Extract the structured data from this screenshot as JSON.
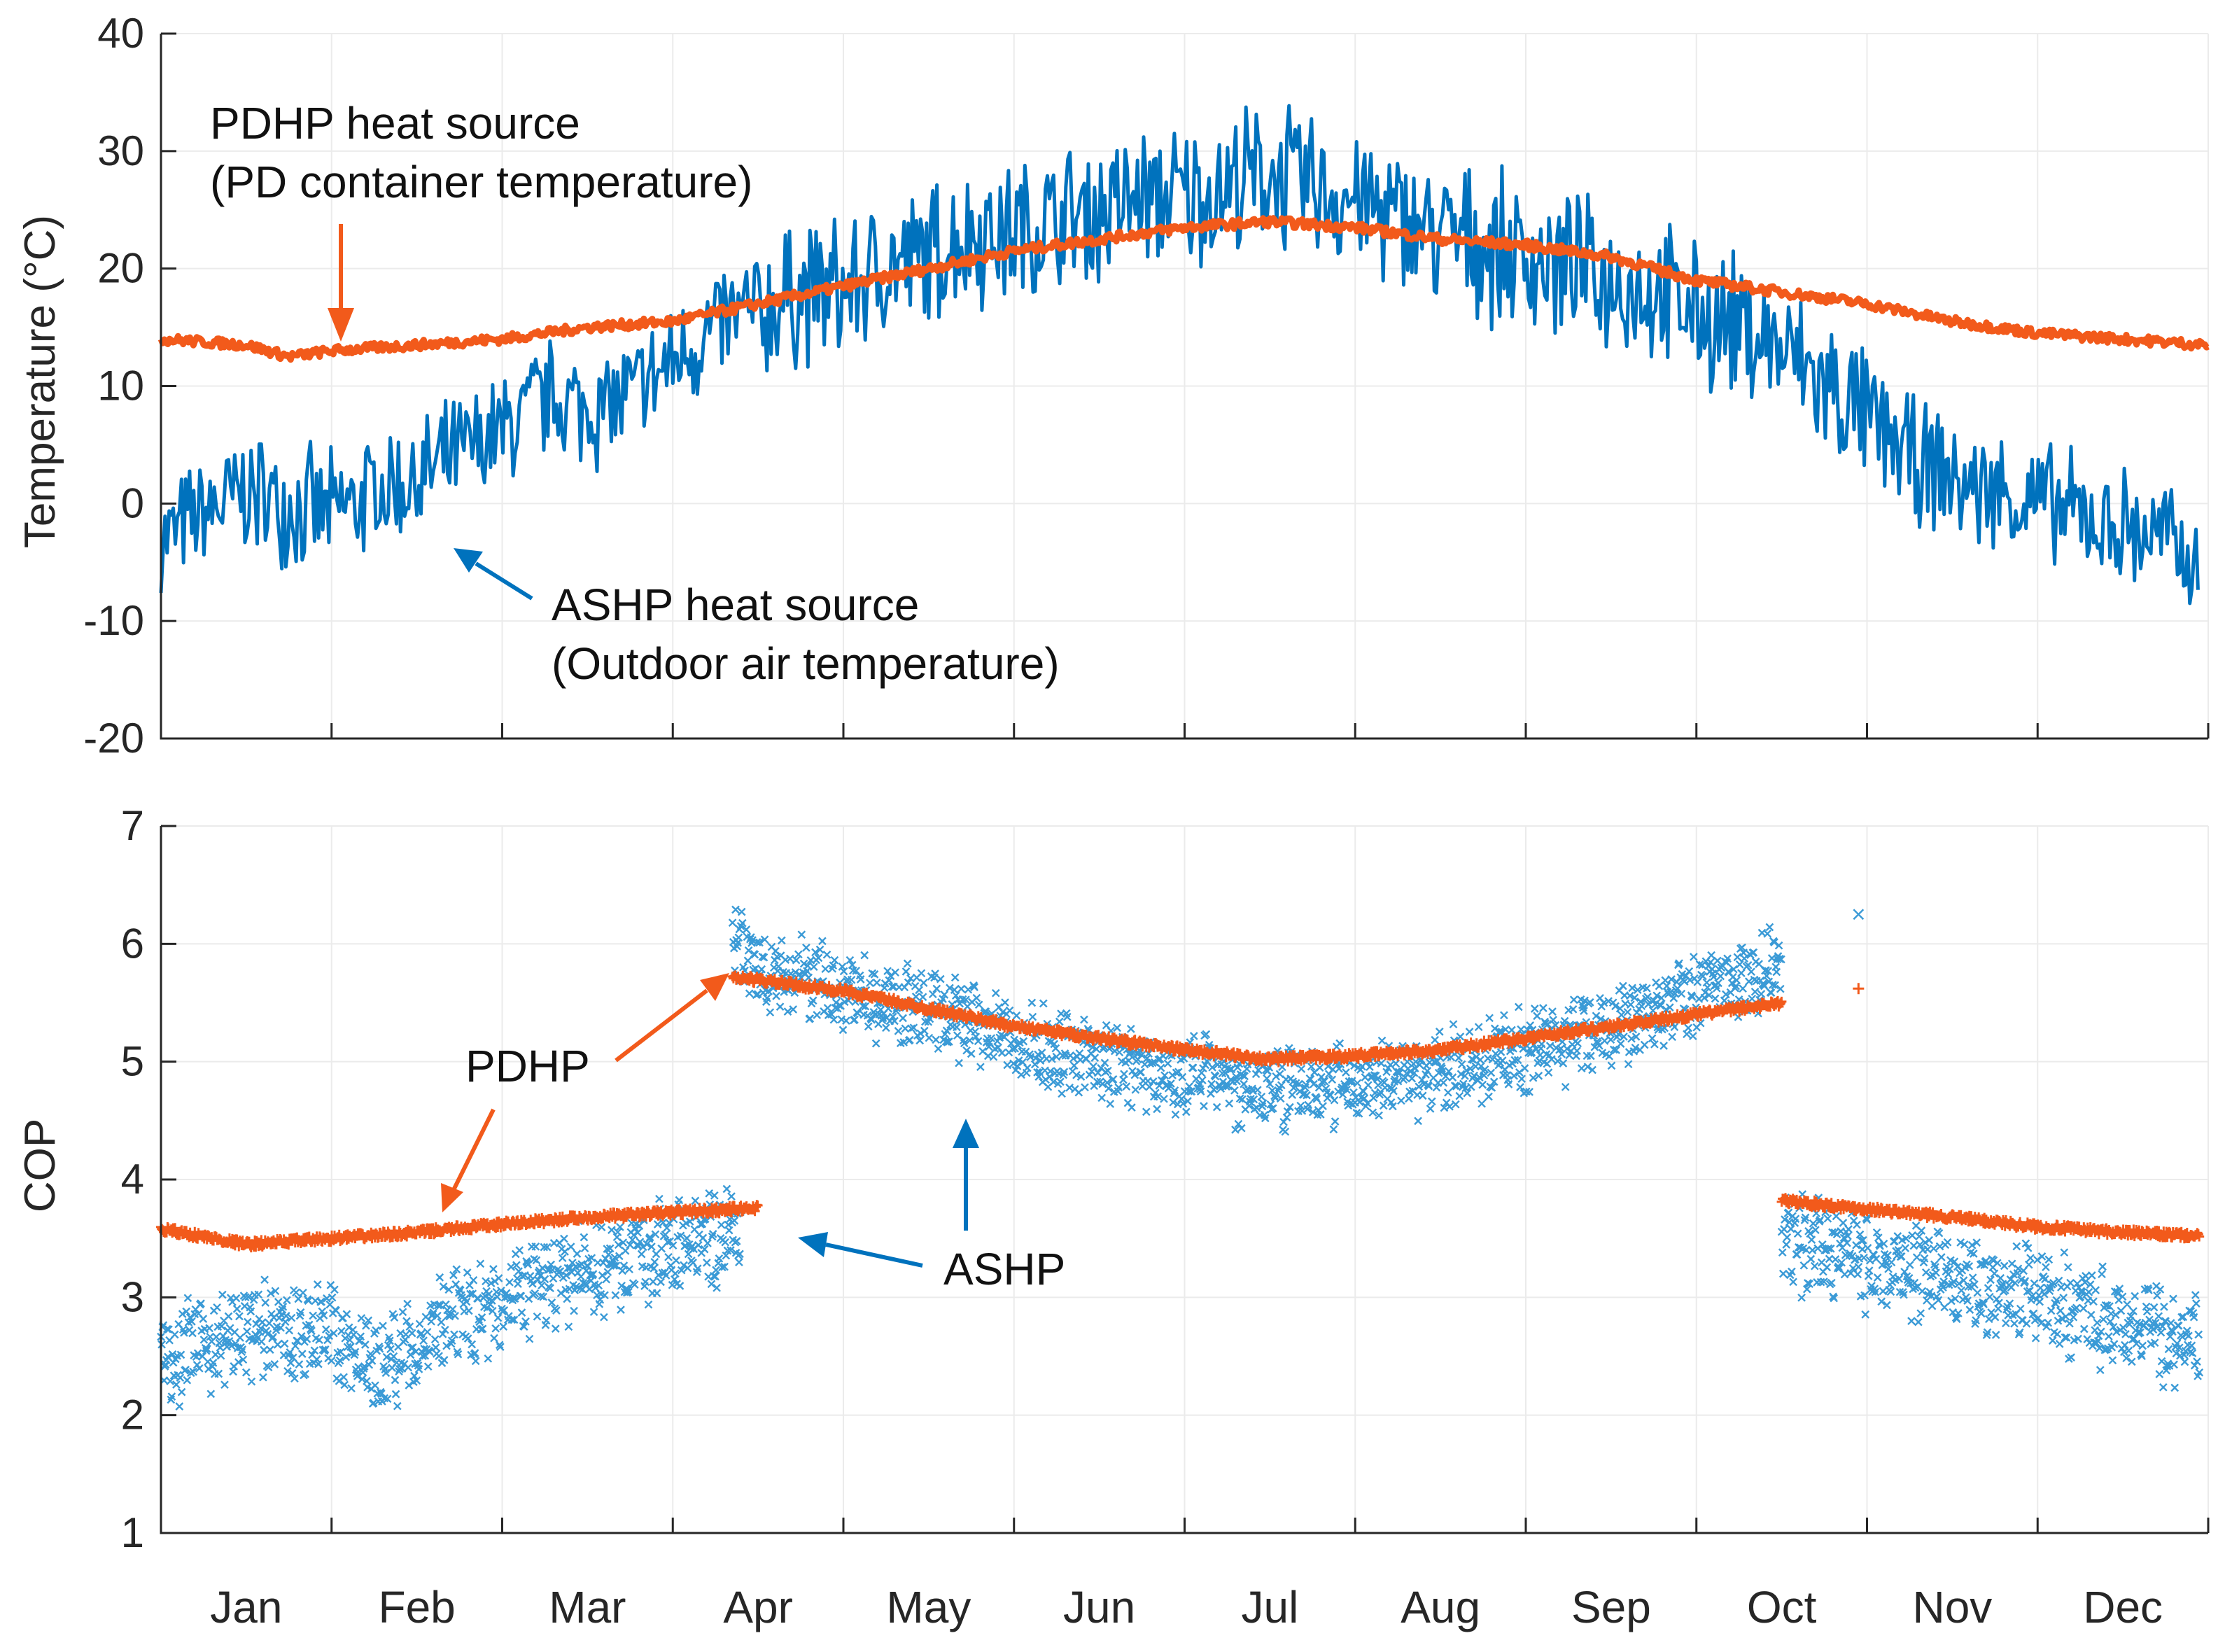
{
  "colors": {
    "ashp": "#0072BD",
    "ashp_light": "#3a9ad6",
    "pdhp": "#F25A1B",
    "axis": "#262626",
    "grid": "#ebebeb"
  },
  "chart_data": [
    {
      "type": "line",
      "panel": "temperature",
      "title": "",
      "xlabel": "",
      "ylabel": "Temperature (°C)",
      "ylim": [
        -20,
        40
      ],
      "yticks": [
        "-20",
        "-10",
        "0",
        "10",
        "20",
        "30",
        "40"
      ],
      "xlim": [
        0,
        12
      ],
      "months": [
        "Jan",
        "Feb",
        "Mar",
        "Apr",
        "May",
        "Jun",
        "Jul",
        "Aug",
        "Sep",
        "Oct",
        "Nov",
        "Dec"
      ],
      "grid": true,
      "series": [
        {
          "name": "ASHP heat source (Outdoor air temperature)",
          "style": "line",
          "color_key": "ashp",
          "x": [
            0,
            0.25,
            0.5,
            0.75,
            1,
            1.25,
            1.5,
            1.75,
            2,
            2.25,
            2.5,
            2.75,
            3,
            3.25,
            3.5,
            3.75,
            4,
            4.25,
            4.5,
            4.75,
            5,
            5.25,
            5.5,
            5.75,
            6,
            6.25,
            6.5,
            6.75,
            7,
            7.25,
            7.5,
            7.75,
            8,
            8.25,
            8.5,
            8.75,
            9,
            9.25,
            9.5,
            9.75,
            10,
            10.25,
            10.5,
            10.75,
            11,
            11.25,
            11.5,
            11.75,
            11.95
          ],
          "y": [
            -3,
            -1,
            1,
            0,
            -1,
            1,
            2,
            4,
            6,
            9,
            8,
            9,
            12,
            15,
            16,
            18,
            18,
            20,
            21,
            23,
            23,
            24,
            25,
            26,
            26,
            27,
            28,
            27,
            26,
            24,
            23,
            22,
            21,
            20,
            19,
            18,
            16,
            15,
            13,
            10,
            7,
            4,
            2,
            1,
            0,
            -1,
            -2,
            -3,
            -6
          ],
          "spread": [
            4,
            5,
            5,
            5,
            5,
            5,
            5,
            5,
            5,
            5,
            5,
            5,
            5,
            5,
            6,
            6,
            6,
            6,
            6,
            6,
            6,
            6,
            6,
            6,
            6,
            6,
            6,
            6,
            6,
            6,
            6,
            6,
            6,
            6,
            6,
            6,
            6,
            6,
            6,
            6,
            6,
            5,
            5,
            5,
            5,
            5,
            5,
            5,
            4
          ],
          "range_min": -10.5,
          "range_max": 36.5
        },
        {
          "name": "PDHP heat source (PD container temperature)",
          "style": "line",
          "color_key": "pdhp",
          "x": [
            0,
            0.5,
            0.75,
            1.0,
            1.5,
            2,
            2.5,
            3,
            3.5,
            4,
            4.5,
            5,
            5.5,
            6,
            6.5,
            7,
            7.5,
            8,
            8.5,
            9,
            9.5,
            10,
            10.5,
            11,
            11.5,
            12
          ],
          "y": [
            14,
            13.5,
            12.5,
            13,
            13.5,
            14,
            15,
            15.5,
            17,
            18.5,
            20,
            21.5,
            22.5,
            23.5,
            24,
            23.5,
            22.5,
            22,
            21,
            19,
            18,
            17,
            15.5,
            14.5,
            14,
            13.5
          ]
        }
      ],
      "annotations": [
        {
          "text": "PDHP heat source",
          "target": "PDHP heat source (PD container temperature)"
        },
        {
          "text": "(PD container temperature)",
          "target": "PDHP heat source (PD container temperature)"
        },
        {
          "text": "ASHP heat source",
          "target": "ASHP heat source (Outdoor air temperature)"
        },
        {
          "text": "(Outdoor air temperature)",
          "target": "ASHP heat source (Outdoor air temperature)"
        }
      ]
    },
    {
      "type": "scatter",
      "panel": "cop",
      "title": "",
      "xlabel": "",
      "ylabel": "COP",
      "ylim": [
        1,
        7
      ],
      "yticks": [
        "1",
        "2",
        "3",
        "4",
        "5",
        "6",
        "7"
      ],
      "xlim": [
        0,
        12
      ],
      "months": [
        "Jan",
        "Feb",
        "Mar",
        "Apr",
        "May",
        "Jun",
        "Jul",
        "Aug",
        "Sep",
        "Oct",
        "Nov",
        "Dec"
      ],
      "grid": true,
      "series": [
        {
          "name": "ASHP",
          "marker": "x",
          "color_key": "ashp_light",
          "segments": [
            {
              "x": [
                0,
                0.5,
                1,
                1.25,
                1.5,
                2,
                2.5,
                3,
                3.4
              ],
              "y": [
                2.5,
                2.7,
                2.7,
                2.4,
                2.6,
                3.0,
                3.2,
                3.4,
                3.6
              ],
              "spread": 0.4
            },
            {
              "x": [
                3.35,
                3.5,
                4,
                4.5,
                5,
                5.5,
                6,
                6.5,
                7,
                7.5,
                8,
                8.5,
                9,
                9.5
              ],
              "y": [
                6.0,
                5.8,
                5.6,
                5.4,
                5.2,
                5.0,
                4.9,
                4.8,
                4.8,
                4.9,
                5.1,
                5.3,
                5.6,
                5.8
              ],
              "spread": 0.35
            },
            {
              "x": [
                9.5,
                10,
                10.5,
                11,
                11.5,
                11.95
              ],
              "y": [
                3.5,
                3.3,
                3.2,
                3.0,
                2.8,
                2.6
              ],
              "spread": 0.4
            }
          ],
          "outliers": [
            {
              "x": 9.95,
              "y": 6.25
            }
          ]
        },
        {
          "name": "PDHP",
          "marker": "+",
          "color_key": "pdhp",
          "segments": [
            {
              "x": [
                0,
                0.5,
                1,
                1.5,
                2,
                2.5,
                3,
                3.5
              ],
              "y": [
                3.58,
                3.45,
                3.5,
                3.55,
                3.62,
                3.68,
                3.72,
                3.76
              ]
            },
            {
              "x": [
                3.35,
                4,
                4.5,
                5,
                5.5,
                6,
                6.5,
                7,
                7.5,
                8,
                8.5,
                9,
                9.5
              ],
              "y": [
                5.72,
                5.6,
                5.45,
                5.3,
                5.2,
                5.1,
                5.02,
                5.05,
                5.1,
                5.2,
                5.3,
                5.4,
                5.5
              ]
            },
            {
              "x": [
                9.5,
                10,
                10.5,
                11,
                11.5,
                11.95
              ],
              "y": [
                3.82,
                3.75,
                3.68,
                3.6,
                3.55,
                3.52
              ]
            }
          ],
          "outliers": [
            {
              "x": 9.95,
              "y": 5.62
            }
          ]
        }
      ],
      "annotations": [
        {
          "text": "PDHP",
          "target": "PDHP"
        },
        {
          "text": "ASHP",
          "target": "ASHP"
        }
      ]
    }
  ]
}
